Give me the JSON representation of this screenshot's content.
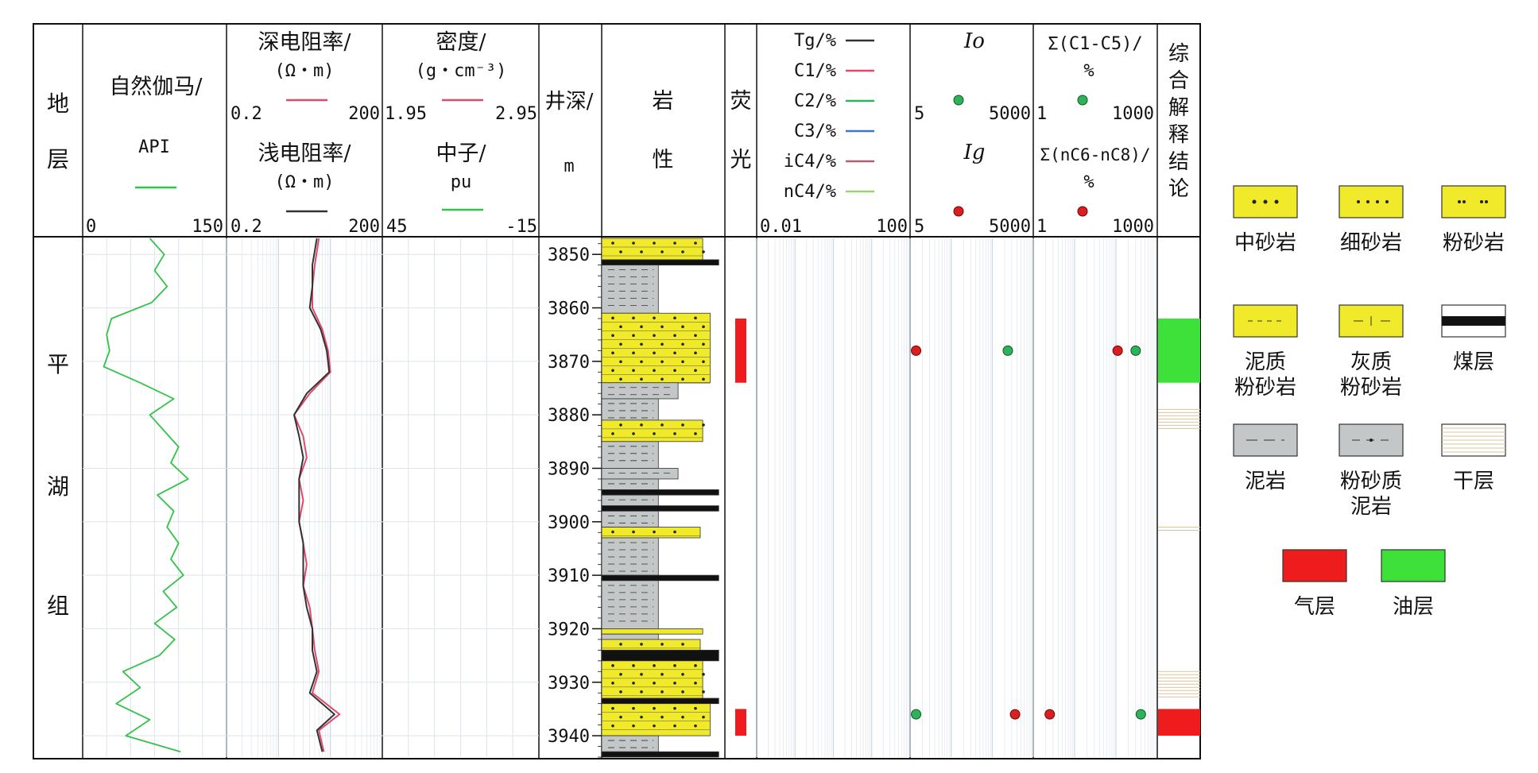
{
  "tracks": {
    "formation": {
      "header": [
        "地",
        "层"
      ],
      "name": [
        "平",
        "湖",
        "组"
      ]
    },
    "gr": {
      "title": "自然伽马/",
      "unit": "API",
      "min": "0",
      "max": "150",
      "color": "#33c24a"
    },
    "res": {
      "deep_title": "深电阻率/",
      "deep_unit": "(Ω・m)",
      "deep_min": "0.2",
      "deep_max": "200",
      "shallow_title": "浅电阻率/",
      "shallow_unit": "(Ω・m)",
      "shallow_min": "0.2",
      "shallow_max": "200",
      "deep_color": "#e04a6a",
      "shallow_color": "#333333"
    },
    "den": {
      "den_title": "密度/",
      "den_unit": "(g・cm⁻³)",
      "den_min": "1.95",
      "den_max": "2.95",
      "neu_title": "中子/",
      "neu_unit": "pu",
      "neu_min": "45",
      "neu_max": "-15",
      "den_color": "#e04a6a",
      "neu_color": "#33c24a"
    },
    "depth": {
      "title": "井深/",
      "unit": "m",
      "ticks": [
        "3850",
        "3860",
        "3870",
        "3880",
        "3890",
        "3900",
        "3910",
        "3920",
        "3930",
        "3940"
      ]
    },
    "lith": {
      "header": [
        "岩",
        "性"
      ]
    },
    "fluor": {
      "header": [
        "荧",
        "光"
      ]
    },
    "gas": {
      "items": [
        {
          "label": "Tg/%",
          "color": "#333333"
        },
        {
          "label": "C1/%",
          "color": "#e04a6a"
        },
        {
          "label": "C2/%",
          "color": "#2fb35a"
        },
        {
          "label": "C3/%",
          "color": "#3a78c8"
        },
        {
          "label": "iC4/%",
          "color": "#b06070"
        },
        {
          "label": "nC4/%",
          "color": "#9ad36a"
        }
      ],
      "min": "0.01",
      "max": "100"
    },
    "io": {
      "io_label": "Io",
      "io_min": "5",
      "io_max": "5000",
      "ig_label": "Ig",
      "ig_min": "5",
      "ig_max": "5000"
    },
    "sum": {
      "a_label": "Σ(C1-C5)/",
      "a_unit": "%",
      "a_min": "1",
      "a_max": "1000",
      "b_label": "Σ(nC6-nC8)/",
      "b_unit": "%",
      "b_min": "1",
      "b_max": "1000"
    },
    "interp": {
      "header": [
        "综",
        "合",
        "解",
        "释",
        "结",
        "论"
      ]
    }
  },
  "legend": {
    "items": [
      {
        "label": "中砂岩",
        "pattern": "sand-medium"
      },
      {
        "label": "细砂岩",
        "pattern": "sand-fine"
      },
      {
        "label": "粉砂岩",
        "pattern": "silt"
      },
      {
        "label": "泥质\n粉砂岩",
        "pattern": "shaly-silt"
      },
      {
        "label": "灰质\n粉砂岩",
        "pattern": "calc-silt"
      },
      {
        "label": "煤层",
        "pattern": "coal"
      },
      {
        "label": "泥岩",
        "pattern": "mudstone"
      },
      {
        "label": "粉砂质\n泥岩",
        "pattern": "silty-mud"
      },
      {
        "label": "干层",
        "pattern": "dry"
      },
      {
        "label": "气层",
        "pattern": "gas"
      },
      {
        "label": "油层",
        "pattern": "oil"
      }
    ]
  },
  "colors": {
    "sand": "#f0ea2a",
    "mud": "#c3c7c8",
    "gas": "#ee1c1c",
    "oil": "#3ee03a",
    "coal": "#111111"
  },
  "chart_data": {
    "type": "well-log",
    "depth_range_m": [
      3847,
      3944
    ],
    "lithology_intervals": [
      {
        "top": 3847,
        "base": 3851,
        "type": "sand-fine"
      },
      {
        "top": 3851,
        "base": 3852,
        "type": "coal"
      },
      {
        "top": 3852,
        "base": 3861,
        "type": "mudstone"
      },
      {
        "top": 3861,
        "base": 3874,
        "type": "sand-medium"
      },
      {
        "top": 3874,
        "base": 3877,
        "type": "silty-mud"
      },
      {
        "top": 3877,
        "base": 3881,
        "type": "mudstone"
      },
      {
        "top": 3881,
        "base": 3885,
        "type": "sand-fine"
      },
      {
        "top": 3885,
        "base": 3890,
        "type": "mudstone"
      },
      {
        "top": 3890,
        "base": 3892,
        "type": "silty-mud"
      },
      {
        "top": 3892,
        "base": 3894,
        "type": "mudstone"
      },
      {
        "top": 3894,
        "base": 3895,
        "type": "coal"
      },
      {
        "top": 3895,
        "base": 3897,
        "type": "mudstone"
      },
      {
        "top": 3897,
        "base": 3898,
        "type": "coal"
      },
      {
        "top": 3898,
        "base": 3901,
        "type": "mudstone"
      },
      {
        "top": 3901,
        "base": 3903,
        "type": "silt"
      },
      {
        "top": 3903,
        "base": 3910,
        "type": "mudstone"
      },
      {
        "top": 3910,
        "base": 3911,
        "type": "coal"
      },
      {
        "top": 3911,
        "base": 3920,
        "type": "mudstone"
      },
      {
        "top": 3920,
        "base": 3921,
        "type": "sand-fine"
      },
      {
        "top": 3921,
        "base": 3922,
        "type": "mudstone"
      },
      {
        "top": 3922,
        "base": 3924,
        "type": "silt"
      },
      {
        "top": 3924,
        "base": 3926,
        "type": "coal"
      },
      {
        "top": 3926,
        "base": 3933,
        "type": "sand-fine"
      },
      {
        "top": 3933,
        "base": 3934,
        "type": "coal"
      },
      {
        "top": 3934,
        "base": 3940,
        "type": "sand-medium"
      },
      {
        "top": 3940,
        "base": 3943,
        "type": "mudstone"
      },
      {
        "top": 3943,
        "base": 3944,
        "type": "coal"
      }
    ],
    "fluorescence": [
      {
        "top": 3862,
        "base": 3874
      },
      {
        "top": 3935,
        "base": 3940
      }
    ],
    "interpretation": [
      {
        "top": 3862,
        "base": 3874,
        "type": "oil"
      },
      {
        "top": 3935,
        "base": 3940,
        "type": "gas"
      },
      {
        "top": 3879,
        "base": 3883,
        "type": "dry"
      },
      {
        "top": 3901,
        "base": 3902,
        "type": "dry"
      },
      {
        "top": 3928,
        "base": 3933,
        "type": "dry"
      }
    ],
    "io_points": [
      {
        "depth": 3868,
        "io": 1200,
        "ig": 7
      },
      {
        "depth": 3936,
        "io": 7,
        "ig": 1800
      }
    ],
    "sum_points": [
      {
        "depth": 3868,
        "c1c5": 300,
        "nc6c8": 110
      },
      {
        "depth": 3936,
        "c1c5": 400,
        "nc6c8": 2.5
      }
    ],
    "gr_curve": {
      "depth": [
        3847,
        3850,
        3853,
        3856,
        3859,
        3862,
        3865,
        3868,
        3871,
        3874,
        3877,
        3880,
        3883,
        3886,
        3889,
        3892,
        3895,
        3898,
        3901,
        3904,
        3907,
        3910,
        3913,
        3916,
        3919,
        3922,
        3925,
        3928,
        3931,
        3934,
        3937,
        3940,
        3943
      ],
      "api": [
        70,
        85,
        75,
        88,
        72,
        30,
        25,
        28,
        22,
        60,
        95,
        70,
        85,
        100,
        92,
        110,
        78,
        95,
        88,
        100,
        92,
        105,
        84,
        98,
        75,
        96,
        80,
        42,
        60,
        35,
        70,
        45,
        102
      ]
    },
    "res_curve": {
      "depth": [
        3847,
        3852,
        3856,
        3860,
        3864,
        3868,
        3872,
        3876,
        3880,
        3884,
        3888,
        3892,
        3896,
        3900,
        3904,
        3908,
        3912,
        3916,
        3920,
        3924,
        3928,
        3932,
        3936,
        3939,
        3943
      ],
      "deep": [
        12,
        10,
        9,
        9,
        14,
        18,
        20,
        8,
        4,
        6,
        7,
        5,
        6,
        5,
        6,
        7,
        6,
        8,
        9,
        10,
        12,
        9,
        30,
        12,
        15
      ],
      "shallow": [
        11,
        9,
        9,
        8,
        13,
        17,
        19,
        7,
        4,
        5,
        6,
        5,
        5,
        5,
        6,
        6,
        6,
        7,
        9,
        9,
        11,
        8,
        24,
        11,
        14
      ]
    }
  }
}
